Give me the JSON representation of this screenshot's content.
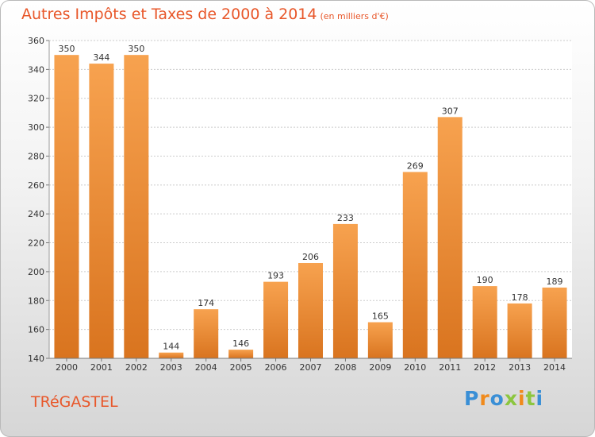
{
  "header": {
    "title": "Autres Impôts et Taxes de 2000 à 2014",
    "unit": "(en milliers d'€)"
  },
  "footer": {
    "city": "TRéGASTEL",
    "logo": "Proxiti"
  },
  "colors": {
    "title": "#e8572a",
    "bar_top": "#f7a24f",
    "bar_bottom": "#d9741f",
    "logo_letters": [
      "#3a8fd6",
      "#f08a1c",
      "#3a8fd6",
      "#8cc63f",
      "#f08a1c",
      "#8cc63f",
      "#3a8fd6"
    ]
  },
  "chart_data": {
    "type": "bar",
    "title": "Autres Impôts et Taxes de 2000 à 2014",
    "subtitle": "(en milliers d'€)",
    "categories": [
      "2000",
      "2001",
      "2002",
      "2003",
      "2004",
      "2005",
      "2006",
      "2007",
      "2008",
      "2009",
      "2010",
      "2011",
      "2012",
      "2013",
      "2014"
    ],
    "values": [
      350,
      344,
      350,
      144,
      174,
      146,
      193,
      206,
      233,
      165,
      269,
      307,
      190,
      178,
      189
    ],
    "ylim": [
      140,
      360
    ],
    "yticks": [
      140,
      160,
      180,
      200,
      220,
      240,
      260,
      280,
      300,
      320,
      340,
      360
    ],
    "grid": true,
    "xlabel": "",
    "ylabel": ""
  }
}
